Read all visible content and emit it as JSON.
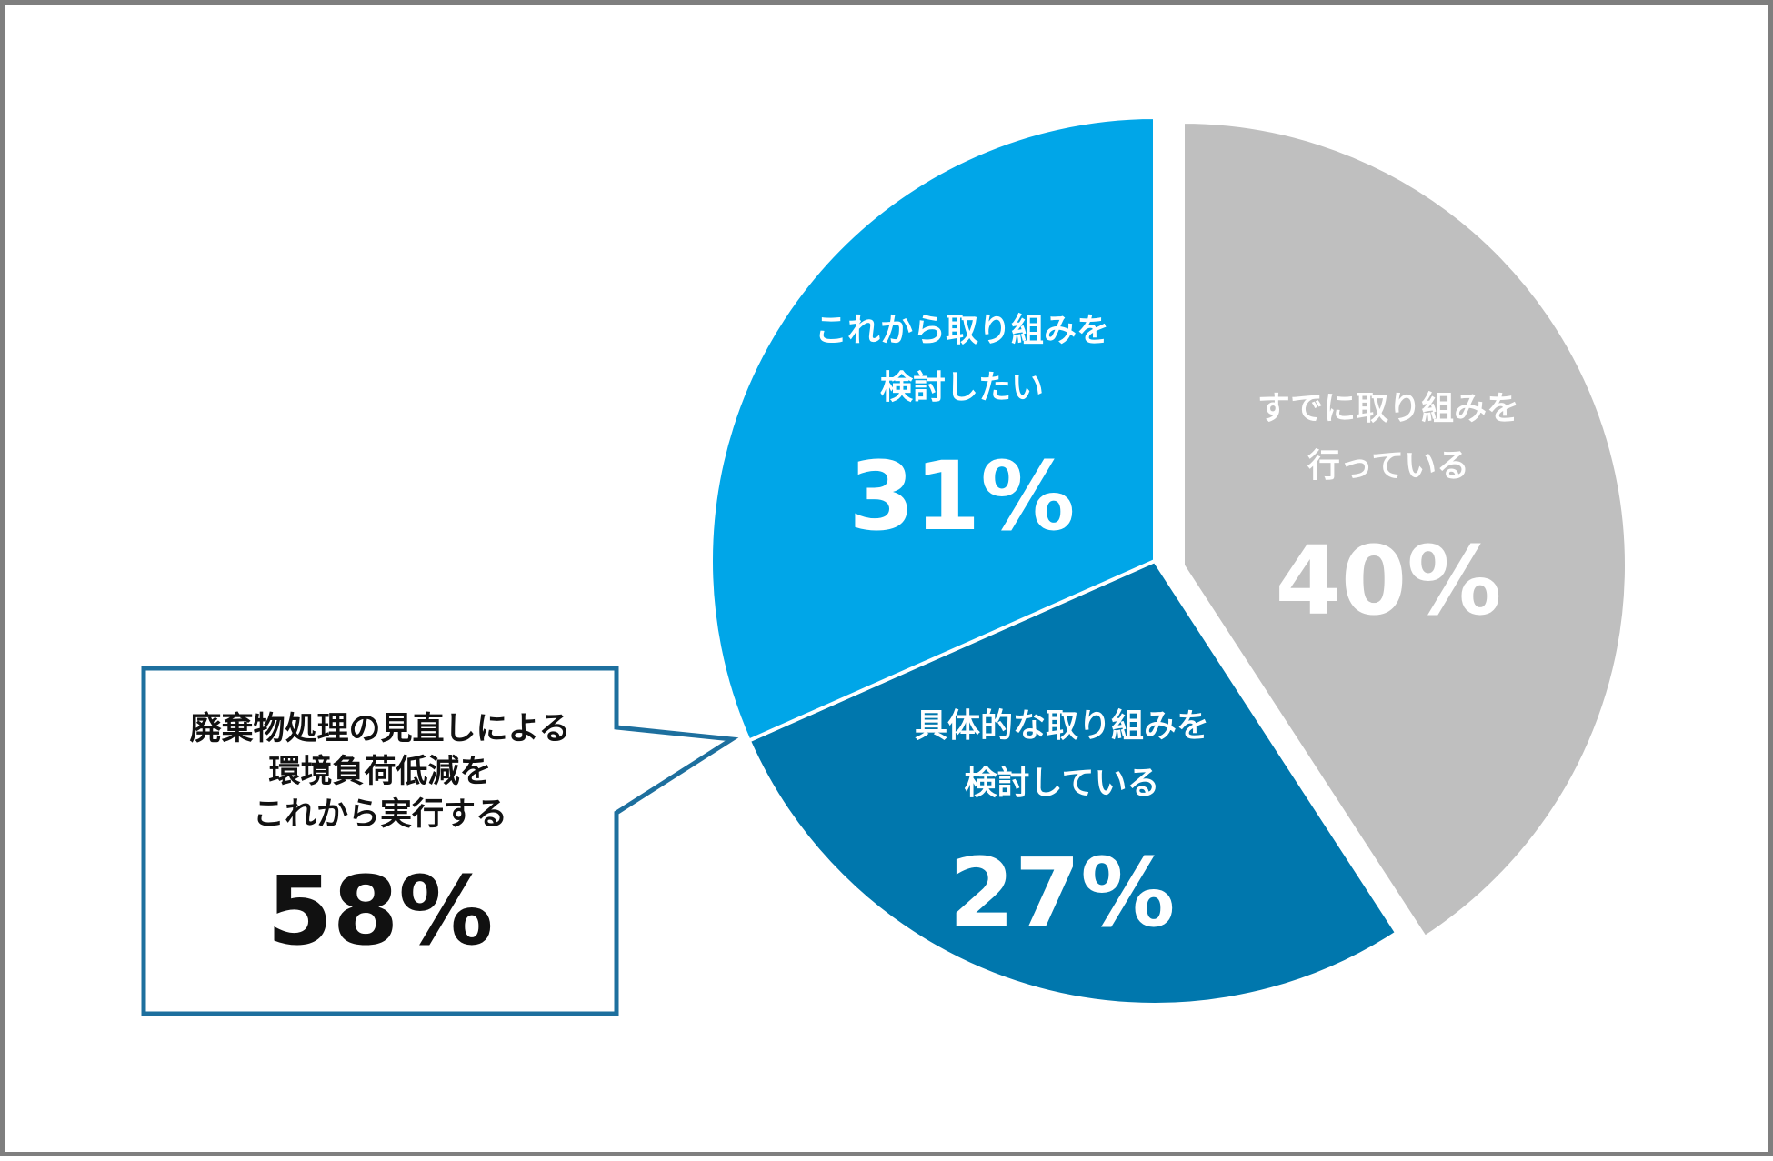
{
  "chart_data": {
    "type": "pie",
    "slices": [
      {
        "label": [
          "すでに取り組みを",
          "行っている"
        ],
        "value": 40,
        "display": "40%",
        "color": "#bfbfbf",
        "exploded": true
      },
      {
        "label": [
          "具体的な取り組みを",
          "検討している"
        ],
        "value": 27,
        "display": "27%",
        "color": "#0077ad"
      },
      {
        "label": [
          "これから取り組みを",
          "検討したい"
        ],
        "value": 31,
        "display": "31%",
        "color": "#00a6e8"
      }
    ],
    "callout": {
      "lines": [
        "廃棄物処理の見直しによる",
        "環境負荷低減を",
        "これから実行する"
      ],
      "value": "58%",
      "border_color": "#1d6f9e"
    }
  }
}
